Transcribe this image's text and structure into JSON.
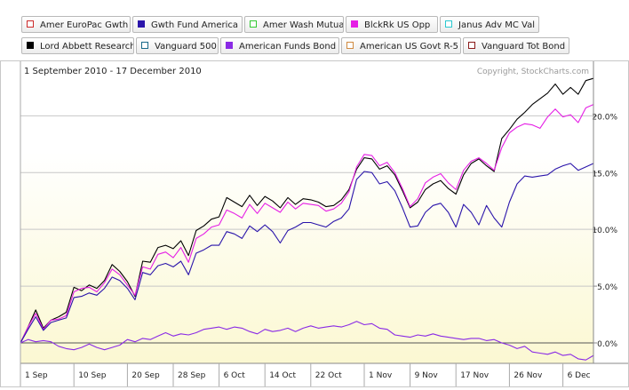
{
  "legend": [
    {
      "name": "Amer EuroPac Gwth",
      "color": "#cc2a2a",
      "filled": false
    },
    {
      "name": "Gwth Fund America",
      "color": "#2a14aa",
      "filled": true
    },
    {
      "name": "Amer Wash Mutual",
      "color": "#32c832",
      "filled": false
    },
    {
      "name": "BlckRk US Opp",
      "color": "#e51ee5",
      "filled": true
    },
    {
      "name": "Janus Adv MC Val",
      "color": "#2ac8d0",
      "filled": false
    },
    {
      "name": "Lord Abbett Research",
      "color": "#000000",
      "filled": true
    },
    {
      "name": "Vanguard 500",
      "color": "#1a6a8a",
      "filled": false
    },
    {
      "name": "American Funds Bond",
      "color": "#8a2ae5",
      "filled": true
    },
    {
      "name": "American US Govt R-5",
      "color": "#d08a40",
      "filled": false
    },
    {
      "name": "Vanguard Tot Bond",
      "color": "#8a1a1a",
      "filled": false
    }
  ],
  "chart_data": {
    "type": "line",
    "date_range_label": "1 September 2010 - 17 December 2010",
    "copyright": "Copyright, StockCharts.com",
    "x_tick_labels": [
      "1 Sep",
      "10 Sep",
      "20 Sep",
      "28 Sep",
      "6 Oct",
      "14 Oct",
      "22 Oct",
      "1 Nov",
      "9 Nov",
      "17 Nov",
      "26 Nov",
      "6 Dec"
    ],
    "y_tick_labels": [
      "0.0%",
      "5.0%",
      "10.0%",
      "15.0%",
      "20.0%"
    ],
    "y_ticks": [
      0,
      5,
      10,
      15,
      20
    ],
    "ylim": [
      -1.8,
      24.8
    ],
    "n_points": 76,
    "grid": true,
    "series": [
      {
        "name": "Lord Abbett Research",
        "color": "#000000",
        "values": [
          0,
          1.4,
          2.9,
          1.3,
          2.0,
          2.3,
          2.7,
          4.9,
          4.6,
          5.1,
          4.8,
          5.5,
          6.9,
          6.3,
          5.4,
          4.1,
          7.2,
          7.1,
          8.4,
          8.6,
          8.3,
          9.0,
          7.7,
          9.9,
          10.3,
          10.9,
          11.1,
          12.8,
          12.4,
          12.0,
          13.0,
          12.1,
          12.9,
          12.5,
          11.9,
          12.8,
          12.2,
          12.7,
          12.6,
          12.4,
          12.0,
          12.1,
          12.6,
          13.5,
          15.3,
          16.3,
          16.2,
          15.3,
          15.6,
          14.8,
          13.4,
          11.9,
          12.4,
          13.5,
          14.0,
          14.3,
          13.6,
          13.1,
          14.8,
          15.8,
          16.2,
          15.6,
          15.1,
          18.0,
          18.8,
          19.7,
          20.3,
          21.0,
          21.5,
          22.0,
          22.8,
          21.9,
          22.5,
          21.9,
          23.1,
          23.3
        ]
      },
      {
        "name": "BlckRk US Opp",
        "color": "#e51ee5",
        "values": [
          0,
          1.4,
          2.6,
          1.2,
          2.0,
          2.1,
          2.4,
          4.5,
          4.8,
          4.9,
          4.5,
          5.3,
          6.5,
          6.0,
          5.1,
          4.2,
          6.7,
          6.5,
          7.8,
          8.0,
          7.5,
          8.4,
          7.1,
          9.2,
          9.6,
          10.2,
          10.4,
          11.7,
          11.4,
          11.0,
          12.2,
          11.4,
          12.3,
          11.9,
          11.5,
          12.4,
          11.8,
          12.3,
          12.2,
          12.1,
          11.6,
          11.8,
          12.3,
          13.3,
          15.5,
          16.6,
          16.5,
          15.6,
          15.9,
          15.0,
          13.6,
          12.0,
          12.7,
          14.1,
          14.6,
          14.9,
          14.1,
          13.5,
          15.2,
          16.0,
          16.3,
          15.8,
          15.2,
          17.2,
          18.5,
          19.0,
          19.3,
          19.2,
          18.9,
          19.9,
          20.6,
          19.9,
          20.1,
          19.4,
          20.7,
          21.0
        ]
      },
      {
        "name": "Gwth Fund America",
        "color": "#2a14aa",
        "values": [
          0,
          1.2,
          2.3,
          1.1,
          1.8,
          2.0,
          2.2,
          4.0,
          4.1,
          4.4,
          4.2,
          4.8,
          5.8,
          5.5,
          4.8,
          3.8,
          6.2,
          6.0,
          6.8,
          7.0,
          6.7,
          7.2,
          6.0,
          7.9,
          8.2,
          8.6,
          8.6,
          9.8,
          9.6,
          9.2,
          10.3,
          9.8,
          10.4,
          9.8,
          8.8,
          9.9,
          10.2,
          10.6,
          10.6,
          10.4,
          10.2,
          10.7,
          11.0,
          11.8,
          14.4,
          15.1,
          15.0,
          14.0,
          14.2,
          13.4,
          11.9,
          10.2,
          10.3,
          11.5,
          12.1,
          12.3,
          11.5,
          10.2,
          12.2,
          11.5,
          10.4,
          12.1,
          11.0,
          10.2,
          12.4,
          14.0,
          14.7,
          14.6,
          14.7,
          14.8,
          15.3,
          15.6,
          15.8,
          15.2,
          15.5,
          15.8
        ]
      },
      {
        "name": "American Funds Bond",
        "color": "#8a2ae5",
        "values": [
          0,
          0.3,
          0.1,
          0.2,
          0.1,
          -0.3,
          -0.5,
          -0.6,
          -0.4,
          -0.1,
          -0.4,
          -0.6,
          -0.4,
          -0.2,
          0.3,
          0.1,
          0.4,
          0.3,
          0.6,
          0.9,
          0.6,
          0.8,
          0.7,
          0.9,
          1.2,
          1.3,
          1.4,
          1.2,
          1.4,
          1.3,
          1.0,
          0.8,
          1.2,
          1.0,
          1.1,
          1.3,
          1.0,
          1.3,
          1.5,
          1.3,
          1.4,
          1.5,
          1.4,
          1.6,
          1.9,
          1.6,
          1.7,
          1.3,
          1.2,
          0.7,
          0.6,
          0.5,
          0.7,
          0.6,
          0.8,
          0.6,
          0.5,
          0.4,
          0.3,
          0.4,
          0.4,
          0.2,
          0.3,
          0.0,
          -0.2,
          -0.5,
          -0.3,
          -0.8,
          -0.9,
          -1.0,
          -0.8,
          -1.1,
          -1.0,
          -1.4,
          -1.5,
          -1.1
        ]
      }
    ]
  }
}
